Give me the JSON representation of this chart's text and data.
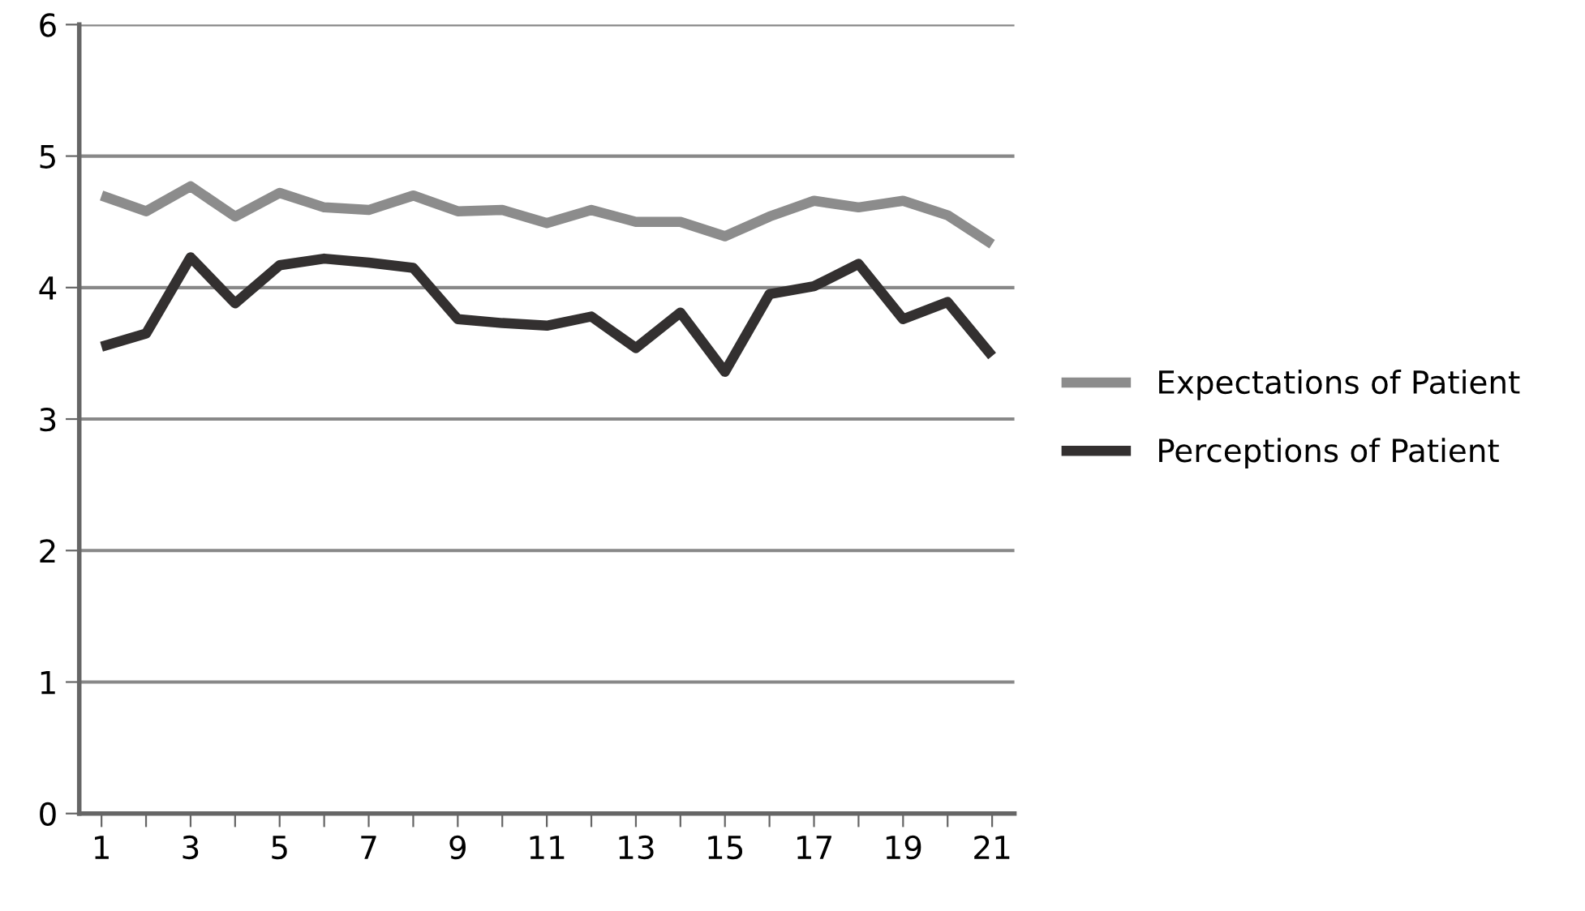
{
  "chart_data": {
    "type": "line",
    "categories": [
      "1",
      null,
      "3",
      null,
      "5",
      null,
      "7",
      null,
      "9",
      null,
      "11",
      null,
      "13",
      null,
      "15",
      null,
      "17",
      null,
      "19",
      null,
      "21"
    ],
    "series": [
      {
        "name": "Expectations of Patient",
        "color": "#8c8c8c",
        "values": [
          4.7,
          4.58,
          4.77,
          4.54,
          4.72,
          4.61,
          4.59,
          4.7,
          4.58,
          4.59,
          4.49,
          4.59,
          4.5,
          4.5,
          4.39,
          4.54,
          4.66,
          4.61,
          4.66,
          4.55,
          4.33
        ]
      },
      {
        "name": "Perceptions of Patient",
        "color": "#333030",
        "values": [
          3.55,
          3.65,
          4.23,
          3.88,
          4.17,
          4.22,
          4.19,
          4.15,
          3.76,
          3.73,
          3.71,
          3.78,
          3.54,
          3.81,
          3.36,
          3.95,
          4.01,
          4.18,
          3.76,
          3.89,
          3.48
        ]
      }
    ],
    "ylim": [
      0,
      6
    ],
    "yticks": [
      0,
      1,
      2,
      3,
      4,
      5,
      6
    ],
    "grid": "y",
    "legend": "right",
    "marker": "none",
    "line_style": "solid"
  }
}
